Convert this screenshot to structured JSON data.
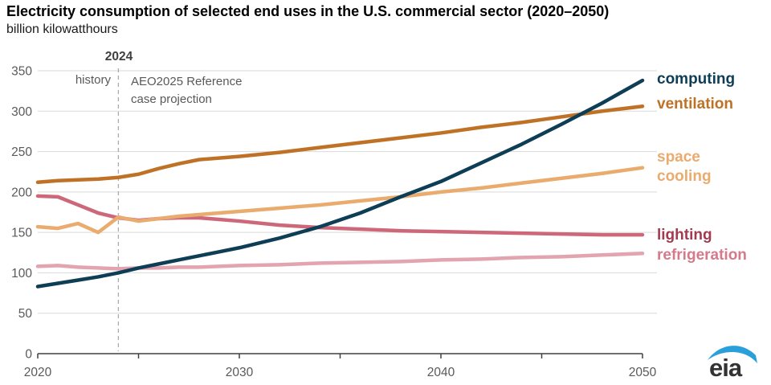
{
  "header": {
    "title": "Electricity consumption of selected end uses in the U.S. commercial sector (2020–2050)",
    "subtitle": "billion kilowatthours"
  },
  "logo": {
    "text": "eia",
    "swoosh_color": "#2b9fd9",
    "text_color": "#333333"
  },
  "chart_data": {
    "type": "line",
    "title": "Electricity consumption of selected end uses in the U.S. commercial sector (2020–2050)",
    "ylabel": "billion kilowatthours",
    "xlabel": "",
    "xlim": [
      2020,
      2050
    ],
    "ylim": [
      0,
      350
    ],
    "yticks": [
      0,
      50,
      100,
      150,
      200,
      250,
      300,
      350
    ],
    "xticks": [
      2020,
      2025,
      2030,
      2035,
      2040,
      2045,
      2050
    ],
    "xtick_labels": [
      "2020",
      "2030",
      "2040",
      "2050"
    ],
    "grid": true,
    "legend_position": "right",
    "reference_line_x": 2024,
    "annotations": {
      "divider_year": "2024",
      "left_of_divider": "history",
      "right_of_divider": "AEO2025 Reference\ncase projection"
    },
    "x": [
      2020,
      2021,
      2022,
      2023,
      2024,
      2025,
      2026,
      2027,
      2028,
      2029,
      2030,
      2032,
      2034,
      2036,
      2038,
      2040,
      2042,
      2044,
      2046,
      2048,
      2050
    ],
    "series": [
      {
        "name": "computing",
        "color": "#0e3e56",
        "label_color": "#0e3e56",
        "values": [
          83,
          87,
          91,
          95,
          100,
          106,
          111,
          116,
          121,
          126,
          131,
          143,
          157,
          174,
          194,
          213,
          236,
          259,
          284,
          310,
          338
        ]
      },
      {
        "name": "ventilation",
        "color": "#bf7226",
        "label_color": "#bf7226",
        "values": [
          212,
          214,
          215,
          216,
          218,
          222,
          229,
          235,
          240,
          242,
          244,
          249,
          255,
          261,
          267,
          273,
          280,
          286,
          293,
          300,
          306
        ]
      },
      {
        "name": "space cooling",
        "color": "#eaab6e",
        "label_color": "#eaab6e",
        "values": [
          157,
          155,
          161,
          150,
          169,
          164,
          167,
          170,
          172,
          174,
          176,
          180,
          184,
          189,
          194,
          200,
          205,
          211,
          217,
          223,
          230
        ]
      },
      {
        "name": "lighting",
        "color": "#cc6879",
        "label_color": "#a23a50",
        "values": [
          195,
          194,
          184,
          174,
          168,
          165,
          167,
          168,
          168,
          166,
          164,
          159,
          156,
          154,
          152,
          151,
          150,
          149,
          148,
          147,
          147
        ]
      },
      {
        "name": "refrigeration",
        "color": "#e2a4af",
        "label_color": "#d5798b",
        "values": [
          108,
          109,
          107,
          106,
          105,
          106,
          106,
          107,
          107,
          108,
          109,
          110,
          112,
          113,
          114,
          116,
          117,
          119,
          120,
          122,
          124
        ]
      }
    ],
    "axis_colors": {
      "grid": "#d9d9d9",
      "axis": "#404040",
      "tick_text": "#595959",
      "divider": "#ababab"
    }
  }
}
